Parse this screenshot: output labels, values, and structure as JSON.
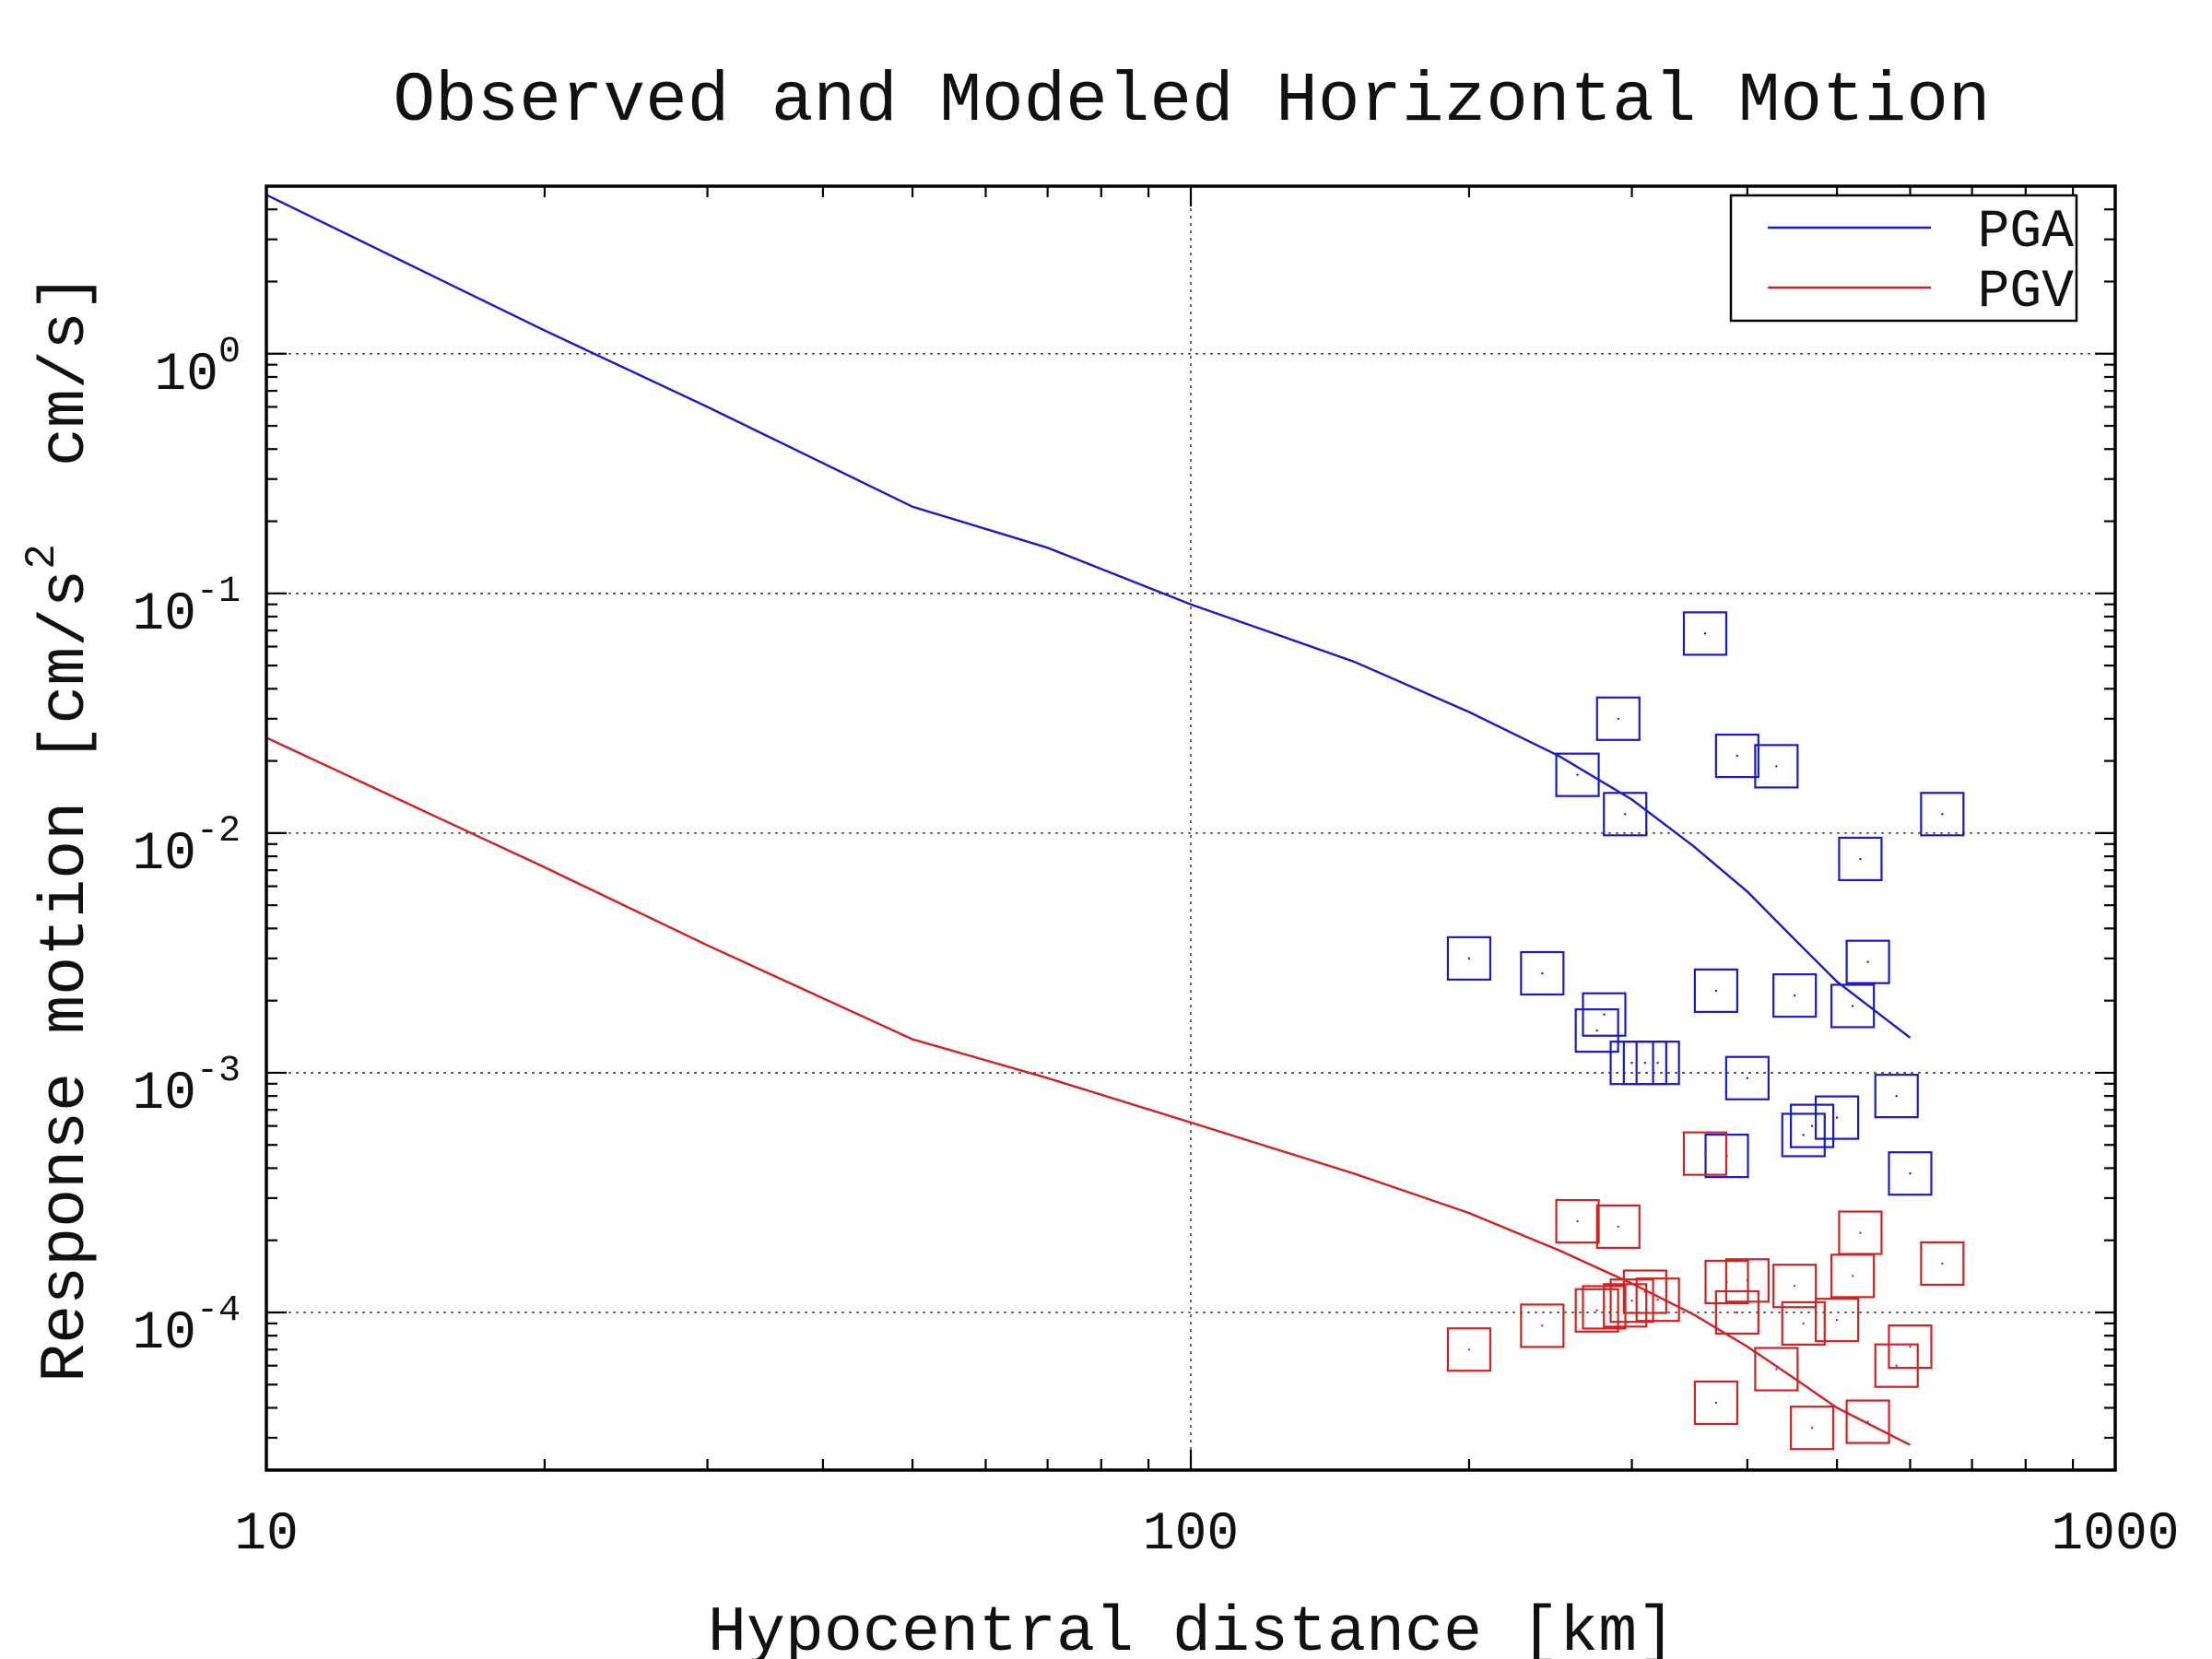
{
  "chart_data": {
    "type": "scatter",
    "title": "Observed and Modeled Horizontal Motion",
    "xlabel": "Hypocentral distance [km]",
    "ylabel": "Response motion [cm/s^2 cm/s]",
    "ylabel_parts": {
      "before": "Response motion [cm/s",
      "sup": "2",
      "after": "  cm/s]"
    },
    "xscale": "log",
    "yscale": "log",
    "xlim": [
      10,
      1000
    ],
    "ylim": [
      2.2e-05,
      5.0
    ],
    "grid": true,
    "x_ticks": [
      {
        "value": 10,
        "label": "10"
      },
      {
        "value": 100,
        "label": "100"
      },
      {
        "value": 1000,
        "label": "1000"
      }
    ],
    "y_ticks": [
      {
        "value": 1,
        "base": "10",
        "exp": "0"
      },
      {
        "value": 0.1,
        "base": "10",
        "exp": "-1"
      },
      {
        "value": 0.01,
        "base": "10",
        "exp": "-2"
      },
      {
        "value": 0.001,
        "base": "10",
        "exp": "-3"
      },
      {
        "value": 0.0001,
        "base": "10",
        "exp": "-4"
      }
    ],
    "legend": {
      "position": "top-right",
      "entries": [
        "PGA",
        "PGV"
      ]
    },
    "colors": {
      "PGA": "#1a1acc",
      "PGV": "#d42020"
    },
    "series": [
      {
        "name": "PGA",
        "kind": "line",
        "x": [
          10,
          20,
          30,
          50,
          70,
          100,
          150,
          200,
          250,
          300,
          350,
          400,
          450,
          500,
          600
        ],
        "y": [
          4.6,
          1.25,
          0.6,
          0.23,
          0.155,
          0.09,
          0.052,
          0.032,
          0.021,
          0.0138,
          0.0088,
          0.0057,
          0.0036,
          0.0024,
          0.0014
        ]
      },
      {
        "name": "PGV",
        "kind": "line",
        "x": [
          10,
          20,
          30,
          50,
          70,
          100,
          150,
          200,
          250,
          300,
          350,
          400,
          450,
          500,
          600
        ],
        "y": [
          0.025,
          0.0072,
          0.0034,
          0.00138,
          0.00095,
          0.00062,
          0.00038,
          0.00026,
          0.000182,
          0.000132,
          9.8e-05,
          7.2e-05,
          5.3e-05,
          4e-05,
          2.8e-05
        ]
      },
      {
        "name": "PGA observed",
        "kind": "scatter",
        "color_key": "PGA",
        "x": [
          200,
          240,
          262,
          275,
          280,
          290,
          295,
          300,
          310,
          320,
          360,
          370,
          380,
          390,
          400,
          430,
          450,
          460,
          470,
          500,
          520,
          530,
          540,
          580,
          600,
          650
        ],
        "y": [
          0.003,
          0.0026,
          0.0175,
          0.0015,
          0.00175,
          0.03,
          0.012,
          0.0011,
          0.0011,
          0.0011,
          0.068,
          0.0022,
          0.00045,
          0.021,
          0.00095,
          0.019,
          0.0021,
          0.00055,
          0.0006,
          0.00065,
          0.0019,
          0.0078,
          0.0029,
          0.0008,
          0.00038,
          0.012
        ]
      },
      {
        "name": "PGV observed",
        "kind": "scatter",
        "color_key": "PGV",
        "x": [
          200,
          240,
          262,
          275,
          280,
          290,
          295,
          300,
          310,
          320,
          360,
          370,
          380,
          390,
          400,
          430,
          450,
          460,
          470,
          500,
          520,
          530,
          540,
          580,
          600,
          650
        ],
        "y": [
          7e-05,
          8.8e-05,
          0.00024,
          0.000102,
          0.000105,
          0.000228,
          0.000107,
          0.000112,
          0.000122,
          0.000113,
          0.00046,
          4.2e-05,
          0.000134,
          0.0001,
          0.000136,
          5.8e-05,
          0.000129,
          9e-05,
          3.3e-05,
          9.3e-05,
          0.000142,
          0.000215,
          3.5e-05,
          6e-05,
          7.2e-05,
          0.00016
        ]
      }
    ]
  }
}
